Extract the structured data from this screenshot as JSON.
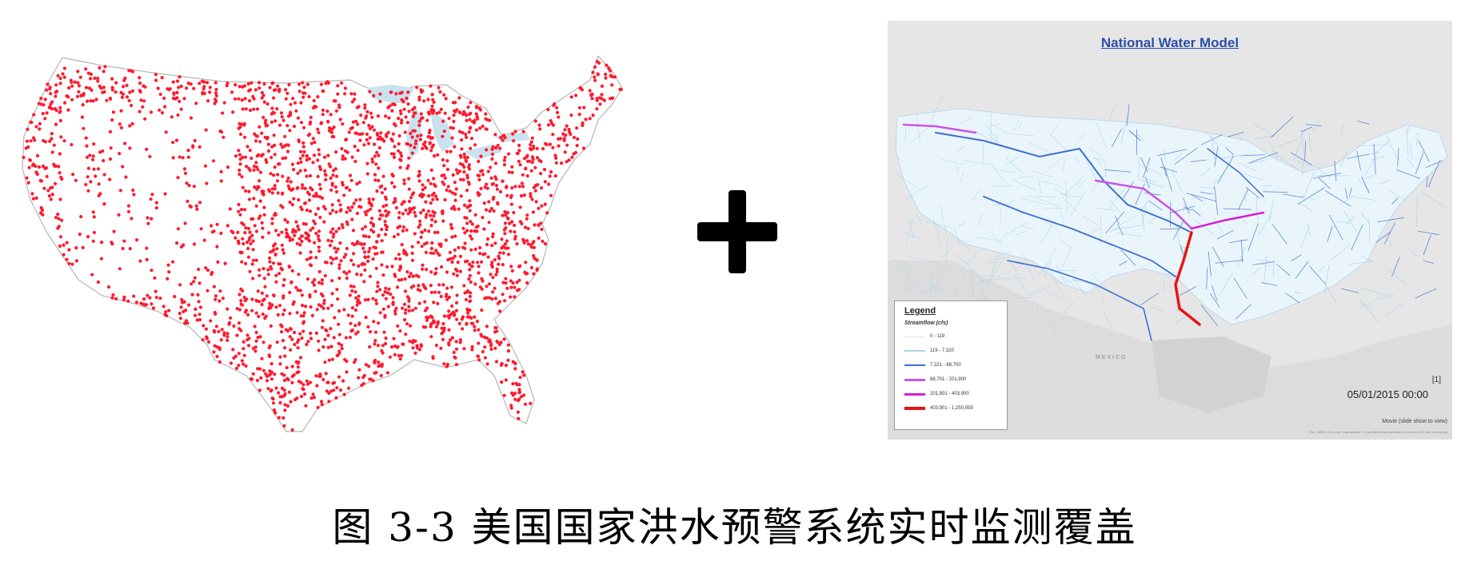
{
  "caption": "图 3-3 美国国家洪水预警系统实时监测覆盖",
  "right_map": {
    "title": "National Water Model",
    "legend": {
      "title": "Legend",
      "subtitle": "Streamflow (cfs)",
      "items": [
        {
          "label": "0 - 119",
          "color": "#d8ecf5"
        },
        {
          "label": "119 - 7,320",
          "color": "#a8d3ea"
        },
        {
          "label": "7,321 - 88,700",
          "color": "#3d6fd1"
        },
        {
          "label": "88,701 - 201,900",
          "color": "#c954e8"
        },
        {
          "label": "201,901 - 403,900",
          "color": "#d11fd6"
        },
        {
          "label": "403,901 - 1,250,559",
          "color": "#e81414"
        }
      ]
    },
    "timestamp": "05/01/2015 00:00",
    "corner_mark": "[1]",
    "movie_note": "Movie (slide show to view)",
    "credits": "Esri, HERE, DeLorme, MapmyIndia, © OpenStreetMap contributors, and the GIS user community",
    "mexico_label": "MEXICO"
  },
  "left_map": {
    "point_color": "#ff1a2e",
    "water_color": "#c9e2ef"
  },
  "plus_icon": "plus-icon"
}
